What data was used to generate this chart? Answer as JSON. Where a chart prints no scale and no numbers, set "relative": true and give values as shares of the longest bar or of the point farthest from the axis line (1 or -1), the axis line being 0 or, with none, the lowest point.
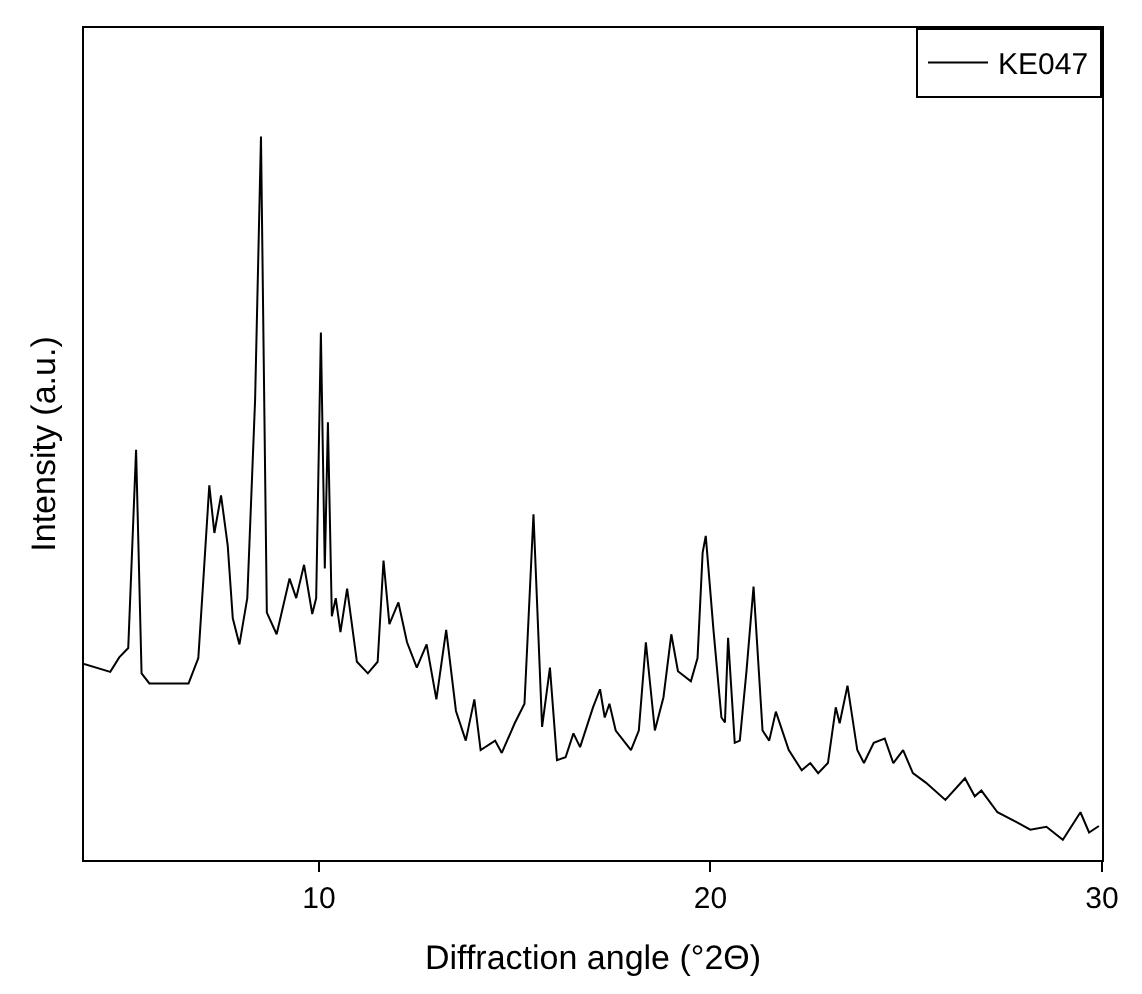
{
  "chart_data": {
    "type": "line",
    "xlabel": "Diffraction angle (°2Θ)",
    "ylabel": "Intensity (a.u.)",
    "relative": true,
    "xlim": [
      4,
      30
    ],
    "xticks": [
      10,
      20,
      30
    ],
    "legend": "top right",
    "marker": "none",
    "line_style": "solid",
    "series": [
      {
        "name": "KE047",
        "color": "#000000",
        "x": [
          4.0,
          4.67,
          4.9,
          5.13,
          5.33,
          5.47,
          5.67,
          6.67,
          6.92,
          7.05,
          7.2,
          7.33,
          7.5,
          7.67,
          7.8,
          7.97,
          8.17,
          8.37,
          8.52,
          8.67,
          8.92,
          9.25,
          9.42,
          9.62,
          9.83,
          9.93,
          10.05,
          10.15,
          10.23,
          10.33,
          10.43,
          10.55,
          10.72,
          10.97,
          11.25,
          11.5,
          11.65,
          11.8,
          12.03,
          12.25,
          12.5,
          12.75,
          13.0,
          13.25,
          13.5,
          13.75,
          13.97,
          14.13,
          14.5,
          14.67,
          15.0,
          15.25,
          15.48,
          15.7,
          15.9,
          16.08,
          16.3,
          16.5,
          16.67,
          17.0,
          17.18,
          17.3,
          17.42,
          17.58,
          17.97,
          18.17,
          18.35,
          18.58,
          18.8,
          19.0,
          19.17,
          19.5,
          19.67,
          19.8,
          19.88,
          20.08,
          20.28,
          20.37,
          20.45,
          20.62,
          20.75,
          20.92,
          21.1,
          21.33,
          21.5,
          21.67,
          22.0,
          22.33,
          22.55,
          22.75,
          23.0,
          23.2,
          23.3,
          23.5,
          23.75,
          23.92,
          24.17,
          24.45,
          24.67,
          24.92,
          25.17,
          25.5,
          26.0,
          26.5,
          26.75,
          26.92,
          27.33,
          27.83,
          28.17,
          28.58,
          29.0,
          29.45,
          29.67,
          29.92
        ],
        "values": [
          0.271,
          0.26,
          0.28,
          0.293,
          0.567,
          0.258,
          0.244,
          0.244,
          0.279,
          0.389,
          0.518,
          0.452,
          0.504,
          0.435,
          0.334,
          0.298,
          0.362,
          0.636,
          1.0,
          0.342,
          0.312,
          0.389,
          0.362,
          0.408,
          0.34,
          0.362,
          0.729,
          0.403,
          0.605,
          0.337,
          0.362,
          0.315,
          0.375,
          0.274,
          0.258,
          0.274,
          0.414,
          0.326,
          0.356,
          0.301,
          0.266,
          0.298,
          0.222,
          0.318,
          0.206,
          0.165,
          0.222,
          0.152,
          0.165,
          0.148,
          0.189,
          0.216,
          0.478,
          0.184,
          0.266,
          0.138,
          0.142,
          0.175,
          0.156,
          0.211,
          0.236,
          0.197,
          0.216,
          0.179,
          0.152,
          0.179,
          0.301,
          0.179,
          0.225,
          0.312,
          0.261,
          0.247,
          0.279,
          0.425,
          0.448,
          0.316,
          0.197,
          0.19,
          0.307,
          0.162,
          0.165,
          0.261,
          0.378,
          0.179,
          0.165,
          0.205,
          0.152,
          0.124,
          0.134,
          0.12,
          0.134,
          0.211,
          0.189,
          0.241,
          0.152,
          0.134,
          0.162,
          0.168,
          0.134,
          0.152,
          0.12,
          0.107,
          0.083,
          0.113,
          0.088,
          0.096,
          0.066,
          0.052,
          0.042,
          0.046,
          0.028,
          0.066,
          0.038,
          0.047
        ]
      }
    ]
  }
}
